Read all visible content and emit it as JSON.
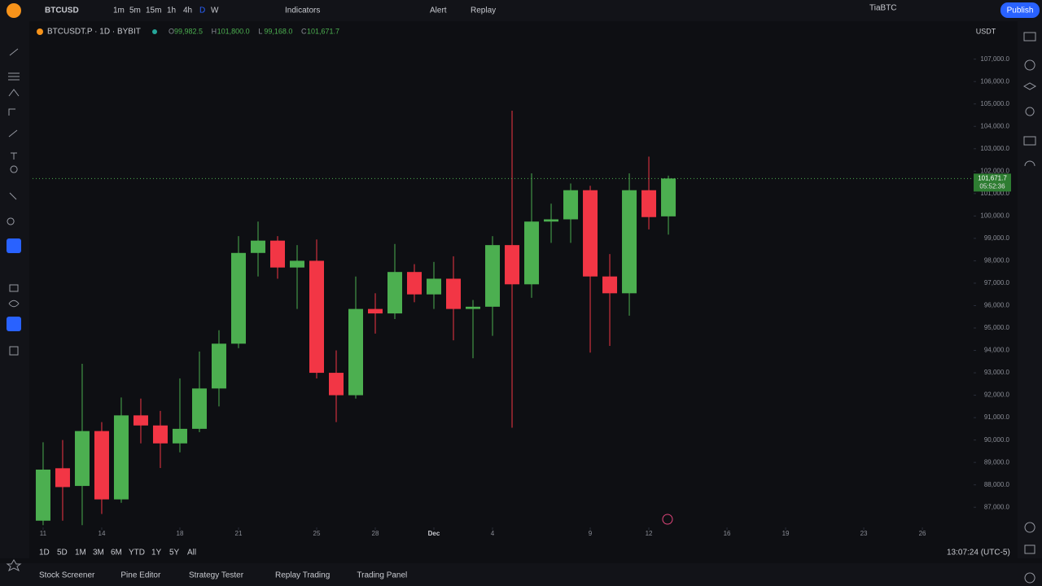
{
  "toolbar": {
    "symbol": "BTCUSD",
    "intervals": [
      "1m",
      "5m",
      "15m",
      "1h",
      "4h",
      "D",
      "W"
    ],
    "indicators": "Indicators",
    "alert": "Alert",
    "replay": "Replay",
    "account": "TiaBTC",
    "publish": "Publish"
  },
  "legend": {
    "symbol": "BTCUSDT.P · 1D · BYBIT",
    "ohlc": [
      {
        "key": "O",
        "value": "99,982.5"
      },
      {
        "key": "H",
        "value": "101,800.0"
      },
      {
        "key": "L",
        "value": "99,168.0"
      },
      {
        "key": "C",
        "value": "101,671.7"
      }
    ]
  },
  "currency": "USDT",
  "chart_data": {
    "type": "candlestick",
    "x": [
      0,
      1,
      2,
      3,
      4,
      5,
      6,
      7,
      8,
      9,
      10,
      11,
      12,
      13,
      14,
      15,
      16,
      17,
      18,
      19,
      20,
      21,
      22,
      23,
      24,
      25,
      26,
      27,
      28,
      29,
      30,
      31,
      32
    ],
    "open": [
      86400,
      88740,
      87950,
      90400,
      87350,
      91100,
      90650,
      89850,
      90500,
      92300,
      94300,
      98350,
      98900,
      97700,
      98000,
      93000,
      92000,
      95850,
      95650,
      97500,
      96500,
      97200,
      95850,
      95950,
      98700,
      96950,
      99750,
      99850,
      101150,
      97300,
      96550,
      101150,
      99982.5
    ],
    "high": [
      89900,
      90000,
      93400,
      90800,
      91900,
      91850,
      91300,
      92750,
      93950,
      94900,
      99100,
      99750,
      99100,
      98700,
      98950,
      94000,
      97300,
      96550,
      98750,
      97850,
      97950,
      98200,
      96250,
      99100,
      104700,
      101900,
      100550,
      101450,
      101350,
      98300,
      101900,
      102650,
      101800
    ],
    "low": [
      86200,
      86400,
      86200,
      86700,
      87200,
      89850,
      88750,
      89450,
      90350,
      91500,
      94100,
      97300,
      97200,
      95850,
      92750,
      90800,
      91850,
      94750,
      95400,
      96150,
      95850,
      94450,
      93650,
      94650,
      90550,
      96350,
      98800,
      98800,
      93900,
      94200,
      95550,
      99400,
      99168
    ],
    "close": [
      88680,
      87900,
      90400,
      87350,
      91100,
      90650,
      89850,
      90500,
      92300,
      94300,
      98350,
      98900,
      97700,
      98000,
      93000,
      92000,
      95850,
      95650,
      97500,
      96500,
      97200,
      95850,
      95950,
      98700,
      96950,
      99750,
      99850,
      101150,
      97300,
      96550,
      101150,
      99950,
      101671.7
    ],
    "up_color": "#4caf50",
    "down_color": "#f23645",
    "xlim": [
      -0.54,
      47.58
    ],
    "xticks": [
      {
        "value": 0,
        "label": "11"
      },
      {
        "value": 3,
        "label": "14"
      },
      {
        "value": 7,
        "label": "18"
      },
      {
        "value": 10,
        "label": "21"
      },
      {
        "value": 14,
        "label": "25"
      },
      {
        "value": 17,
        "label": "28"
      },
      {
        "value": 20,
        "label": "Dec"
      },
      {
        "value": 23,
        "label": "4"
      },
      {
        "value": 28,
        "label": "9"
      },
      {
        "value": 31,
        "label": "12"
      },
      {
        "value": 35,
        "label": "16"
      },
      {
        "value": 38,
        "label": "19"
      },
      {
        "value": 42,
        "label": "23"
      },
      {
        "value": 45,
        "label": "26"
      }
    ],
    "ylim": [
      86100,
      108550
    ],
    "yticks": [
      {
        "value": 87000,
        "label": "87,000.0"
      },
      {
        "value": 88000,
        "label": "88,000.0"
      },
      {
        "value": 89000,
        "label": "89,000.0"
      },
      {
        "value": 90000,
        "label": "90,000.0"
      },
      {
        "value": 91000,
        "label": "91,000.0"
      },
      {
        "value": 92000,
        "label": "92,000.0"
      },
      {
        "value": 93000,
        "label": "93,000.0"
      },
      {
        "value": 94000,
        "label": "94,000.0"
      },
      {
        "value": 95000,
        "label": "95,000.0"
      },
      {
        "value": 96000,
        "label": "96,000.0"
      },
      {
        "value": 97000,
        "label": "97,000.0"
      },
      {
        "value": 98000,
        "label": "98,000.0"
      },
      {
        "value": 99000,
        "label": "99,000.0"
      },
      {
        "value": 100000,
        "label": "100,000.0"
      },
      {
        "value": 101000,
        "label": "101,000.0"
      },
      {
        "value": 102000,
        "label": "102,000.0"
      },
      {
        "value": 103000,
        "label": "103,000.0"
      },
      {
        "value": 104000,
        "label": "104,000.0"
      },
      {
        "value": 105000,
        "label": "105,000.0"
      },
      {
        "value": 106000,
        "label": "106,000.0"
      },
      {
        "value": 107000,
        "label": "107,000.0"
      }
    ],
    "last_price": {
      "value": 101671.7,
      "label": "101,671.7",
      "countdown": "05:52:36"
    }
  },
  "ranges": [
    "1D",
    "5D",
    "1M",
    "3M",
    "6M",
    "YTD",
    "1Y",
    "5Y",
    "All"
  ],
  "clock": "13:07:24 (UTC-5)",
  "tabs": [
    "Stock Screener",
    "Pine Editor",
    "Strategy Tester",
    "Replay Trading",
    "Trading Panel"
  ]
}
